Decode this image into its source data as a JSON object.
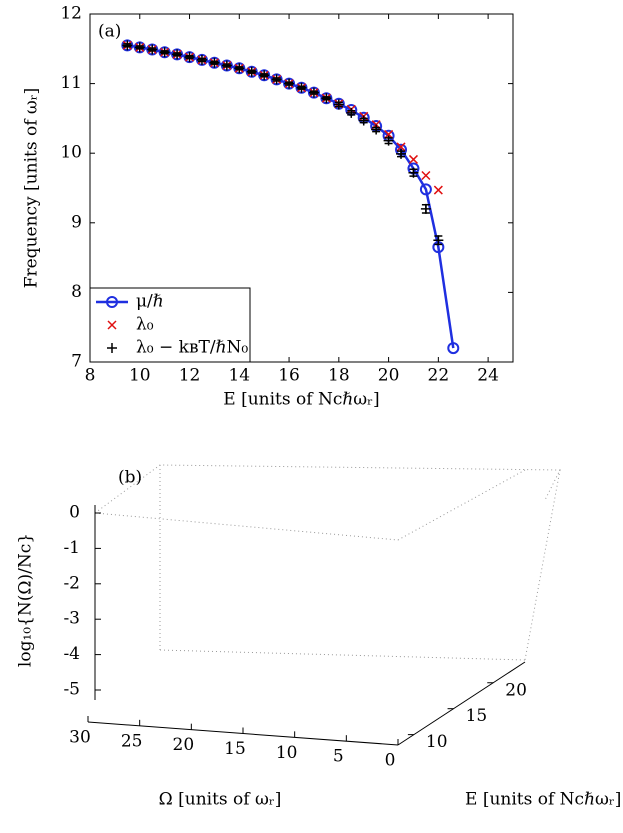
{
  "chart_data": [
    {
      "type": "line",
      "title": "(a)",
      "xlabel": "E [units of Ncℏωᵣ]",
      "ylabel": "Frequency [units of ωᵣ]",
      "x": [
        9.5,
        10,
        10.5,
        11,
        11.5,
        12,
        12.5,
        13,
        13.5,
        14,
        14.5,
        15,
        15.5,
        16,
        16.5,
        17,
        17.5,
        18,
        18.5,
        19,
        19.5,
        20,
        20.5,
        21,
        21.5,
        22,
        22.6
      ],
      "series": [
        {
          "name": "μ/ℏ",
          "color": "#1f2fe0",
          "marker": "o",
          "values": [
            11.55,
            11.52,
            11.49,
            11.45,
            11.42,
            11.38,
            11.34,
            11.3,
            11.26,
            11.22,
            11.17,
            11.12,
            11.06,
            11.0,
            10.94,
            10.87,
            10.79,
            10.71,
            10.62,
            10.51,
            10.39,
            10.25,
            10.05,
            9.78,
            9.48,
            8.65,
            7.2
          ]
        },
        {
          "name": "λ₀",
          "color": "#e01010",
          "marker": "x",
          "values": [
            11.55,
            11.52,
            11.49,
            11.45,
            11.42,
            11.38,
            11.34,
            11.3,
            11.26,
            11.22,
            11.17,
            11.12,
            11.06,
            11.0,
            10.94,
            10.87,
            10.79,
            10.71,
            10.63,
            10.53,
            10.41,
            10.27,
            10.09,
            9.91,
            9.68,
            9.47,
            null
          ]
        },
        {
          "name": "λ₀ − kʙT/ℏN₀",
          "color": "#000000",
          "marker": "+",
          "values": [
            11.55,
            11.52,
            11.49,
            11.45,
            11.42,
            11.38,
            11.34,
            11.3,
            11.26,
            11.22,
            11.17,
            11.12,
            11.06,
            11.0,
            10.94,
            10.87,
            10.79,
            10.7,
            10.58,
            10.47,
            10.34,
            10.18,
            9.99,
            9.72,
            9.2,
            8.75,
            null
          ],
          "errors": [
            0.02,
            0.02,
            0.02,
            0.02,
            0.02,
            0.02,
            0.02,
            0.02,
            0.02,
            0.02,
            0.02,
            0.02,
            0.02,
            0.02,
            0.02,
            0.02,
            0.02,
            0.03,
            0.03,
            0.03,
            0.03,
            0.04,
            0.04,
            0.05,
            0.06,
            0.06,
            null
          ]
        }
      ],
      "xlim": [
        8,
        25
      ],
      "ylim": [
        7,
        12
      ],
      "xticks": [
        8,
        10,
        12,
        14,
        16,
        18,
        20,
        22,
        24
      ],
      "yticks": [
        7,
        8,
        9,
        10,
        11,
        12
      ],
      "legend": "lower left"
    },
    {
      "type": "surface3d",
      "title": "(b)",
      "xlabel": "Ω [units of ωᵣ]",
      "ylabel": "E [units of Ncℏωᵣ]",
      "zlabel": "log₁₀{N(Ω)/Nc}",
      "xlim": [
        30,
        0
      ],
      "xticks": [
        30,
        25,
        20,
        15,
        10,
        5,
        0
      ],
      "ylim": [
        8,
        24
      ],
      "yticks": [
        10,
        15,
        20
      ],
      "zlim": [
        0,
        -5
      ],
      "zticks": [
        0,
        -1,
        -2,
        -3,
        -4,
        -5
      ],
      "grid": true
    }
  ]
}
